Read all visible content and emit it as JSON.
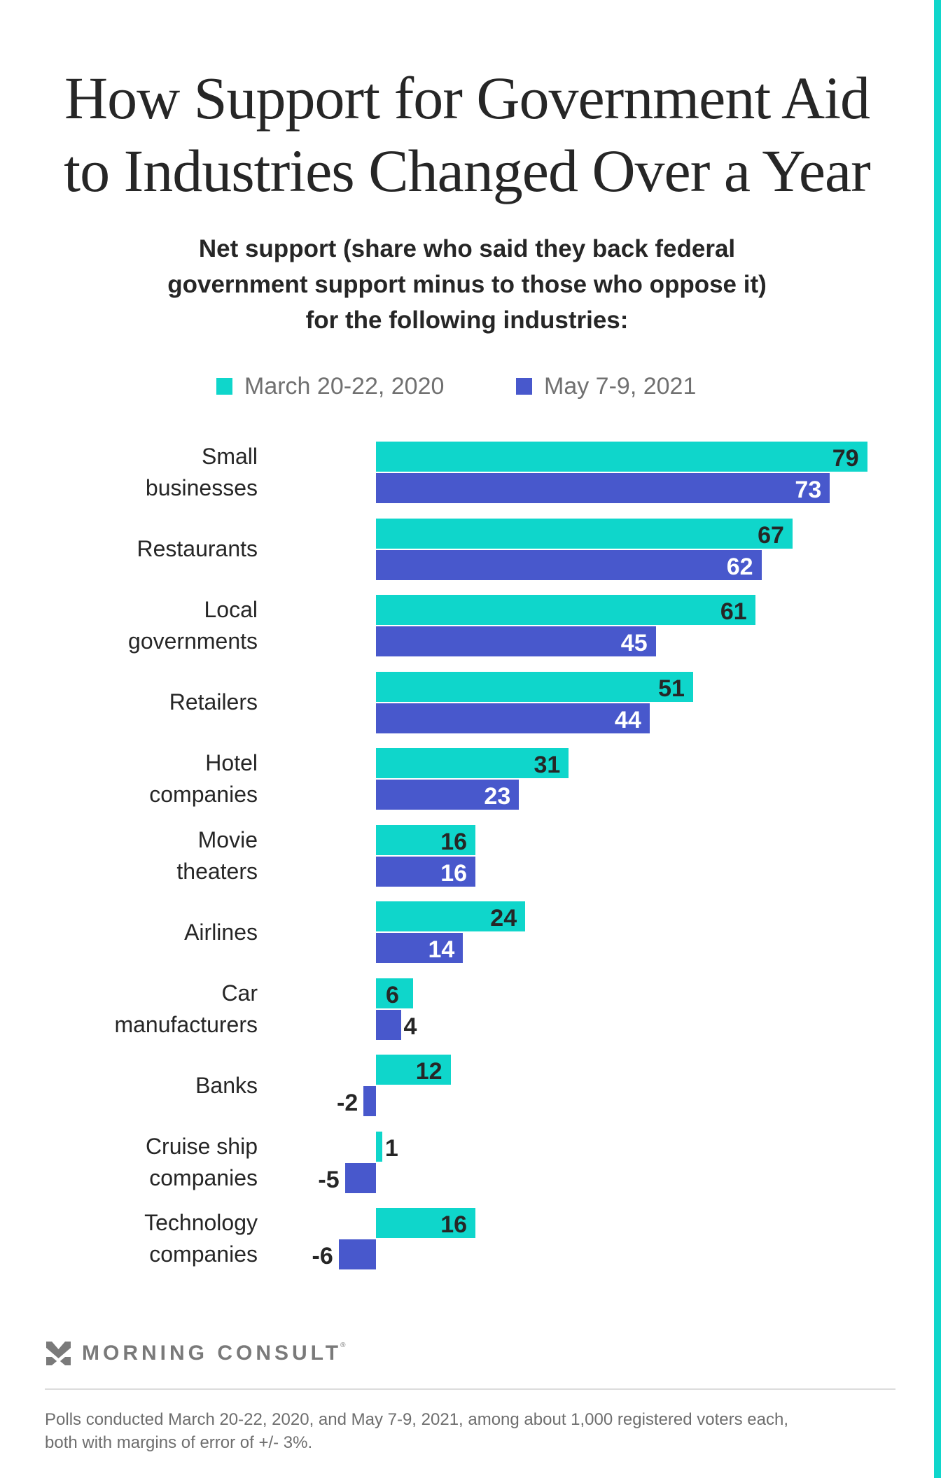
{
  "header": {
    "title_lines": [
      "How Support for Government Aid",
      "to Industries Changed Over a Year"
    ],
    "subtitle_lines": [
      "Net support (share who said they back federal",
      "government support minus to those who oppose it)",
      "for the following industries:"
    ]
  },
  "legend": [
    {
      "label": "March 20-22, 2020",
      "color": "#0fd6cb"
    },
    {
      "label": "May 7-9, 2021",
      "color": "#4858cc"
    }
  ],
  "chart_data": {
    "type": "bar",
    "orientation": "horizontal",
    "title": "How Support for Government Aid to Industries Changed Over a Year",
    "subtitle": "Net support (share who said they back federal government support minus to those who oppose it) for the following industries:",
    "xlabel": "",
    "ylabel": "",
    "grid": false,
    "legend_position": "top-center",
    "categories": [
      [
        "Small",
        "businesses"
      ],
      [
        "Restaurants"
      ],
      [
        "Local",
        "governments"
      ],
      [
        "Retailers"
      ],
      [
        "Hotel",
        "companies"
      ],
      [
        "Movie",
        "theaters"
      ],
      [
        "Airlines"
      ],
      [
        "Car",
        "manufacturers"
      ],
      [
        "Banks"
      ],
      [
        "Cruise ship",
        "companies"
      ],
      [
        "Technology",
        "companies"
      ]
    ],
    "series": [
      {
        "name": "March 20-22, 2020",
        "color": "#0fd6cb",
        "label_color": "#262626",
        "values": [
          79,
          67,
          61,
          51,
          31,
          16,
          24,
          6,
          12,
          1,
          16
        ]
      },
      {
        "name": "May 7-9, 2021",
        "color": "#4858cc",
        "label_color": "#ffffff",
        "values": [
          73,
          62,
          45,
          44,
          23,
          16,
          14,
          4,
          -2,
          -5,
          -6
        ]
      }
    ],
    "xlim": [
      -6,
      79
    ]
  },
  "brand": {
    "name": "MORNING CONSULT",
    "registered": "®"
  },
  "footnote_lines": [
    "Polls conducted March 20-22, 2020, and May 7-9, 2021, among about 1,000 registered voters each,",
    "both with margins of error of +/- 3%."
  ]
}
